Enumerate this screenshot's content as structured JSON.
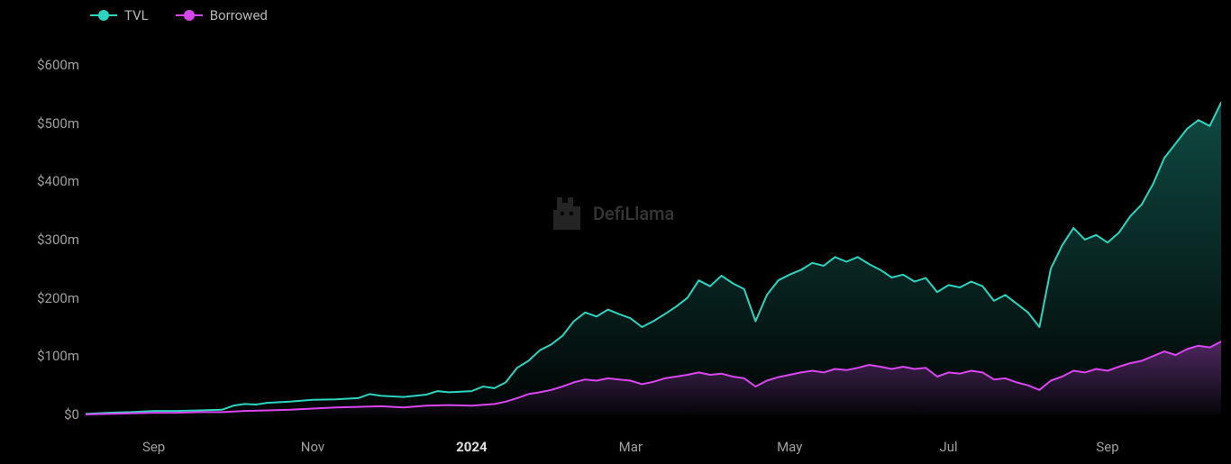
{
  "chart": {
    "type": "area",
    "background_color": "#000000",
    "watermark_text": "DefiLlama",
    "watermark_color": "#888888",
    "legend": {
      "position": "top-left",
      "items": [
        {
          "label": "TVL",
          "color": "#2dd4bf"
        },
        {
          "label": "Borrowed",
          "color": "#d946ef"
        }
      ]
    },
    "y_axis": {
      "ylim": [
        0,
        640000000
      ],
      "ticks": [
        0,
        100000000,
        200000000,
        300000000,
        400000000,
        500000000,
        600000000
      ],
      "tick_labels": [
        "$0",
        "$100m",
        "$200m",
        "$300m",
        "$400m",
        "$500m",
        "$600m"
      ],
      "label_color": "#a0a0a0",
      "label_fontsize": 15,
      "grid_color": "none"
    },
    "x_axis": {
      "xlim": [
        0,
        100
      ],
      "ticks": [
        6,
        20,
        34,
        48,
        62,
        76,
        90
      ],
      "tick_labels": [
        "Sep",
        "Nov",
        "2024",
        "Mar",
        "May",
        "Jul",
        "Sep"
      ],
      "bold_labels": [
        "2024"
      ],
      "label_color": "#a0a0a0",
      "label_fontsize": 15
    },
    "series": [
      {
        "name": "TVL",
        "line_color": "#2dd4bf",
        "fill_top_color": "rgba(45,212,191,0.35)",
        "fill_bottom_color": "rgba(45,212,191,0.02)",
        "line_width": 2,
        "data": [
          [
            0,
            1
          ],
          [
            2,
            3
          ],
          [
            4,
            4
          ],
          [
            6,
            6
          ],
          [
            8,
            6
          ],
          [
            10,
            7
          ],
          [
            12,
            8
          ],
          [
            13,
            15
          ],
          [
            14,
            18
          ],
          [
            15,
            17
          ],
          [
            16,
            20
          ],
          [
            18,
            22
          ],
          [
            20,
            25
          ],
          [
            22,
            26
          ],
          [
            24,
            28
          ],
          [
            25,
            35
          ],
          [
            26,
            32
          ],
          [
            28,
            30
          ],
          [
            30,
            34
          ],
          [
            31,
            40
          ],
          [
            32,
            38
          ],
          [
            34,
            40
          ],
          [
            35,
            48
          ],
          [
            36,
            45
          ],
          [
            37,
            55
          ],
          [
            38,
            80
          ],
          [
            39,
            92
          ],
          [
            40,
            110
          ],
          [
            41,
            120
          ],
          [
            42,
            135
          ],
          [
            43,
            160
          ],
          [
            44,
            175
          ],
          [
            45,
            168
          ],
          [
            46,
            180
          ],
          [
            47,
            172
          ],
          [
            48,
            165
          ],
          [
            49,
            150
          ],
          [
            50,
            160
          ],
          [
            51,
            172
          ],
          [
            52,
            185
          ],
          [
            53,
            200
          ],
          [
            54,
            230
          ],
          [
            55,
            220
          ],
          [
            56,
            238
          ],
          [
            57,
            225
          ],
          [
            58,
            215
          ],
          [
            59,
            160
          ],
          [
            60,
            205
          ],
          [
            61,
            230
          ],
          [
            62,
            240
          ],
          [
            63,
            248
          ],
          [
            64,
            260
          ],
          [
            65,
            255
          ],
          [
            66,
            270
          ],
          [
            67,
            262
          ],
          [
            68,
            270
          ],
          [
            69,
            258
          ],
          [
            70,
            248
          ],
          [
            71,
            235
          ],
          [
            72,
            240
          ],
          [
            73,
            228
          ],
          [
            74,
            234
          ],
          [
            75,
            210
          ],
          [
            76,
            222
          ],
          [
            77,
            218
          ],
          [
            78,
            228
          ],
          [
            79,
            220
          ],
          [
            80,
            195
          ],
          [
            81,
            205
          ],
          [
            82,
            190
          ],
          [
            83,
            175
          ],
          [
            84,
            150
          ],
          [
            85,
            250
          ],
          [
            86,
            290
          ],
          [
            87,
            320
          ],
          [
            88,
            300
          ],
          [
            89,
            308
          ],
          [
            90,
            295
          ],
          [
            91,
            312
          ],
          [
            92,
            340
          ],
          [
            93,
            360
          ],
          [
            94,
            395
          ],
          [
            95,
            440
          ],
          [
            96,
            465
          ],
          [
            97,
            490
          ],
          [
            98,
            505
          ],
          [
            99,
            495
          ],
          [
            100,
            535
          ]
        ]
      },
      {
        "name": "Borrowed",
        "line_color": "#d946ef",
        "fill_top_color": "rgba(217,70,239,0.35)",
        "fill_bottom_color": "rgba(217,70,239,0.02)",
        "line_width": 2,
        "data": [
          [
            0,
            0
          ],
          [
            2,
            1
          ],
          [
            4,
            2
          ],
          [
            6,
            3
          ],
          [
            8,
            3
          ],
          [
            10,
            4
          ],
          [
            12,
            4
          ],
          [
            14,
            6
          ],
          [
            16,
            7
          ],
          [
            18,
            8
          ],
          [
            20,
            10
          ],
          [
            22,
            12
          ],
          [
            24,
            13
          ],
          [
            26,
            14
          ],
          [
            28,
            12
          ],
          [
            30,
            15
          ],
          [
            32,
            16
          ],
          [
            34,
            15
          ],
          [
            36,
            18
          ],
          [
            37,
            22
          ],
          [
            38,
            28
          ],
          [
            39,
            35
          ],
          [
            40,
            38
          ],
          [
            41,
            42
          ],
          [
            42,
            48
          ],
          [
            43,
            55
          ],
          [
            44,
            60
          ],
          [
            45,
            58
          ],
          [
            46,
            62
          ],
          [
            47,
            60
          ],
          [
            48,
            58
          ],
          [
            49,
            52
          ],
          [
            50,
            56
          ],
          [
            51,
            62
          ],
          [
            52,
            65
          ],
          [
            53,
            68
          ],
          [
            54,
            72
          ],
          [
            55,
            68
          ],
          [
            56,
            70
          ],
          [
            57,
            65
          ],
          [
            58,
            62
          ],
          [
            59,
            48
          ],
          [
            60,
            58
          ],
          [
            61,
            64
          ],
          [
            62,
            68
          ],
          [
            63,
            72
          ],
          [
            64,
            75
          ],
          [
            65,
            72
          ],
          [
            66,
            78
          ],
          [
            67,
            76
          ],
          [
            68,
            80
          ],
          [
            69,
            85
          ],
          [
            70,
            82
          ],
          [
            71,
            78
          ],
          [
            72,
            82
          ],
          [
            73,
            78
          ],
          [
            74,
            80
          ],
          [
            75,
            65
          ],
          [
            76,
            72
          ],
          [
            77,
            70
          ],
          [
            78,
            75
          ],
          [
            79,
            72
          ],
          [
            80,
            60
          ],
          [
            81,
            62
          ],
          [
            82,
            55
          ],
          [
            83,
            50
          ],
          [
            84,
            42
          ],
          [
            85,
            58
          ],
          [
            86,
            65
          ],
          [
            87,
            75
          ],
          [
            88,
            72
          ],
          [
            89,
            78
          ],
          [
            90,
            75
          ],
          [
            91,
            82
          ],
          [
            92,
            88
          ],
          [
            93,
            92
          ],
          [
            94,
            100
          ],
          [
            95,
            108
          ],
          [
            96,
            102
          ],
          [
            97,
            112
          ],
          [
            98,
            118
          ],
          [
            99,
            115
          ],
          [
            100,
            125
          ]
        ]
      }
    ]
  }
}
